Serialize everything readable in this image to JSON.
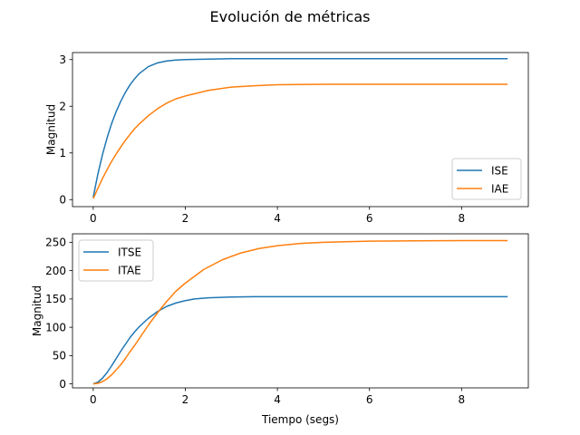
{
  "figure_title": "Evolución de métricas",
  "chart_data": [
    {
      "type": "line",
      "xlabel": "",
      "ylabel": "Magnitud",
      "xlim": [
        -0.45,
        9.45
      ],
      "ylim": [
        -0.15,
        3.15
      ],
      "xticks": [
        0,
        2,
        4,
        6,
        8
      ],
      "yticks": [
        0,
        1,
        2,
        3
      ],
      "legend": "bottom-right",
      "series": [
        {
          "name": "ISE",
          "color": "#1f77b4",
          "x": [
            0,
            0.1,
            0.2,
            0.3,
            0.4,
            0.5,
            0.6,
            0.7,
            0.8,
            0.9,
            1.0,
            1.2,
            1.4,
            1.6,
            1.8,
            2.0,
            2.5,
            3.0,
            3.5,
            4.0,
            5.0,
            6.0,
            7.0,
            8.0,
            9.0
          ],
          "y": [
            0.05,
            0.54,
            0.96,
            1.32,
            1.63,
            1.89,
            2.11,
            2.3,
            2.46,
            2.59,
            2.7,
            2.85,
            2.93,
            2.97,
            2.99,
            3.0,
            3.01,
            3.02,
            3.02,
            3.02,
            3.02,
            3.02,
            3.02,
            3.02,
            3.02
          ]
        },
        {
          "name": "IAE",
          "color": "#ff7f0e",
          "x": [
            0,
            0.1,
            0.2,
            0.3,
            0.4,
            0.5,
            0.6,
            0.7,
            0.8,
            0.9,
            1.0,
            1.2,
            1.4,
            1.6,
            1.8,
            2.0,
            2.5,
            3.0,
            3.5,
            4.0,
            5.0,
            6.0,
            7.0,
            8.0,
            9.0
          ],
          "y": [
            0.02,
            0.24,
            0.45,
            0.64,
            0.82,
            0.98,
            1.13,
            1.27,
            1.4,
            1.52,
            1.62,
            1.8,
            1.95,
            2.07,
            2.16,
            2.22,
            2.34,
            2.41,
            2.44,
            2.46,
            2.47,
            2.47,
            2.47,
            2.47,
            2.47
          ]
        }
      ]
    },
    {
      "type": "line",
      "xlabel": "Tiempo (segs)",
      "ylabel": "Magnitud",
      "xlim": [
        -0.45,
        9.45
      ],
      "ylim": [
        -7,
        265
      ],
      "xticks": [
        0,
        2,
        4,
        6,
        8
      ],
      "yticks": [
        0,
        50,
        100,
        150,
        200,
        250
      ],
      "legend": "top-left",
      "series": [
        {
          "name": "ITSE",
          "color": "#1f77b4",
          "x": [
            0,
            0.1,
            0.2,
            0.3,
            0.4,
            0.5,
            0.6,
            0.7,
            0.8,
            0.9,
            1.0,
            1.2,
            1.4,
            1.6,
            1.8,
            2.0,
            2.2,
            2.5,
            3.0,
            3.5,
            4.0,
            5.0,
            6.0,
            7.0,
            8.0,
            9.0
          ],
          "y": [
            0,
            3,
            10,
            20,
            32,
            45,
            58,
            70,
            82,
            92,
            101,
            116,
            128,
            137,
            143,
            147,
            150,
            152,
            153.5,
            154,
            154,
            154,
            154,
            154,
            154,
            154
          ]
        },
        {
          "name": "ITAE",
          "color": "#ff7f0e",
          "x": [
            0,
            0.1,
            0.2,
            0.3,
            0.4,
            0.5,
            0.6,
            0.7,
            0.8,
            0.9,
            1.0,
            1.2,
            1.4,
            1.6,
            1.8,
            2.0,
            2.4,
            2.8,
            3.2,
            3.6,
            4.0,
            4.5,
            5.0,
            6.0,
            7.0,
            8.0,
            9.0
          ],
          "y": [
            0,
            1,
            4,
            9,
            16,
            25,
            34,
            45,
            57,
            68,
            80,
            104,
            126,
            146,
            164,
            178,
            202,
            219,
            231,
            239,
            244,
            248,
            250,
            252,
            252.5,
            253,
            253
          ]
        }
      ]
    }
  ]
}
